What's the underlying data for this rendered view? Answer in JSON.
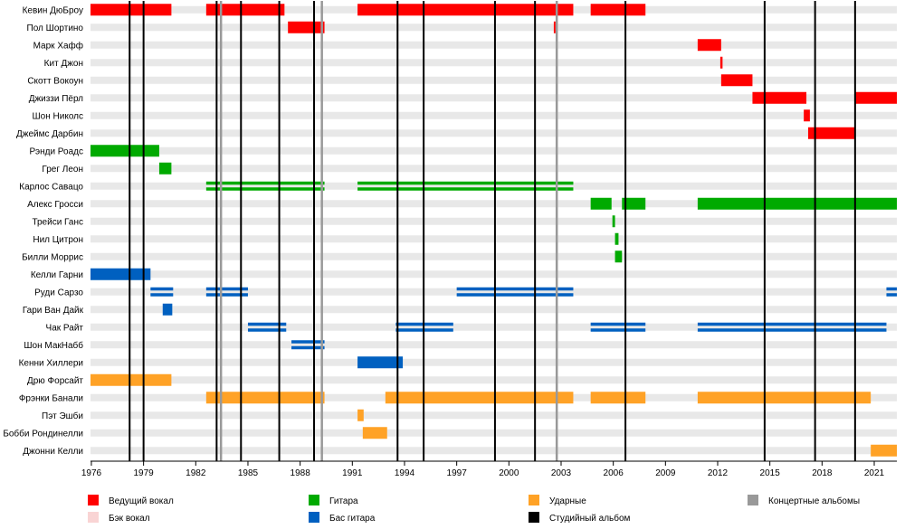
{
  "chart_data": {
    "type": "timeline",
    "x_range": [
      1975.95,
      2022.3
    ],
    "ticks": [
      {
        "year": 1976,
        "label": "1976"
      },
      {
        "year": 1979,
        "label": "1979"
      },
      {
        "year": 1982,
        "label": "1982"
      },
      {
        "year": 1985,
        "label": "1985"
      },
      {
        "year": 1988,
        "label": "1988"
      },
      {
        "year": 1991,
        "label": "1991"
      },
      {
        "year": 1994,
        "label": "1994"
      },
      {
        "year": 1997,
        "label": "1997"
      },
      {
        "year": 2000,
        "label": "2000"
      },
      {
        "year": 2003,
        "label": "2003"
      },
      {
        "year": 2006,
        "label": "2006"
      },
      {
        "year": 2009,
        "label": "2009"
      },
      {
        "year": 2012,
        "label": "2012"
      },
      {
        "year": 2015,
        "label": "2015"
      },
      {
        "year": 2018,
        "label": "2018"
      },
      {
        "year": 2021,
        "label": "2021"
      }
    ],
    "roles": {
      "vocals": {
        "label": "Ведущий вокал",
        "color": "#ff0000"
      },
      "backing": {
        "label": "Бэк вокал",
        "color": "#f9d4d4"
      },
      "guitar": {
        "label": "Гитара",
        "color": "#00aa00"
      },
      "bass": {
        "label": "Бас гитара",
        "color": "#0060c0"
      },
      "drums": {
        "label": "Ударные",
        "color": "#ffa226"
      },
      "live": {
        "label": "Концертные альбомы",
        "color": "#999999"
      },
      "studio": {
        "label": "Студийный альбом",
        "color": "#000000"
      }
    },
    "members": [
      {
        "name": "Кевин ДюБроу",
        "bars": [
          {
            "role": "vocals",
            "from": 1975.95,
            "to": 1980.6
          },
          {
            "role": "vocals",
            "from": 1982.6,
            "to": 1987.1
          },
          {
            "role": "vocals",
            "from": 1991.3,
            "to": 2003.7
          },
          {
            "role": "vocals",
            "from": 2004.7,
            "to": 2007.85
          }
        ]
      },
      {
        "name": "Пол Шортино",
        "bars": [
          {
            "role": "vocals",
            "from": 1987.3,
            "to": 1989.4
          },
          {
            "role": "vocals",
            "from": 2002.58,
            "to": 2002.68
          }
        ]
      },
      {
        "name": "Марк Хафф",
        "bars": [
          {
            "role": "vocals",
            "from": 2010.85,
            "to": 2012.2
          }
        ]
      },
      {
        "name": "Кит Джон",
        "bars": [
          {
            "role": "vocals",
            "from": 2012.15,
            "to": 2012.28
          }
        ]
      },
      {
        "name": "Скотт Вокоун",
        "bars": [
          {
            "role": "vocals",
            "from": 2012.2,
            "to": 2014.0
          }
        ]
      },
      {
        "name": "Джиззи Пёрл",
        "bars": [
          {
            "role": "vocals",
            "from": 2014.0,
            "to": 2017.1
          },
          {
            "role": "vocals",
            "from": 2019.9,
            "to": 2022.3
          }
        ]
      },
      {
        "name": "Шон Николс",
        "bars": [
          {
            "role": "vocals",
            "from": 2016.95,
            "to": 2017.3
          }
        ]
      },
      {
        "name": "Джеймс Дарбин",
        "bars": [
          {
            "role": "vocals",
            "from": 2017.2,
            "to": 2019.9
          }
        ]
      },
      {
        "name": "Рэнди Роадс",
        "bars": [
          {
            "role": "guitar",
            "from": 1975.95,
            "to": 1979.9
          }
        ]
      },
      {
        "name": "Грег Леон",
        "bars": [
          {
            "role": "guitar",
            "from": 1979.9,
            "to": 1980.6
          }
        ]
      },
      {
        "name": "Карлос Савацо",
        "bars": [
          {
            "role": "guitar",
            "from": 1982.6,
            "to": 1989.4,
            "double": true
          },
          {
            "role": "guitar",
            "from": 1991.3,
            "to": 2003.7,
            "double": true
          }
        ]
      },
      {
        "name": "Алекс Гросси",
        "bars": [
          {
            "role": "guitar",
            "from": 2004.7,
            "to": 2005.9
          },
          {
            "role": "guitar",
            "from": 2006.5,
            "to": 2007.85
          },
          {
            "role": "guitar",
            "from": 2010.85,
            "to": 2022.3
          }
        ]
      },
      {
        "name": "Трейси Ганс",
        "bars": [
          {
            "role": "guitar",
            "from": 2005.95,
            "to": 2006.1
          }
        ]
      },
      {
        "name": "Нил Цитрон",
        "bars": [
          {
            "role": "guitar",
            "from": 2006.1,
            "to": 2006.3
          }
        ]
      },
      {
        "name": "Билли Моррис",
        "bars": [
          {
            "role": "guitar",
            "from": 2006.1,
            "to": 2006.5
          }
        ]
      },
      {
        "name": "Келли Гарни",
        "bars": [
          {
            "role": "bass",
            "from": 1975.95,
            "to": 1979.4
          }
        ]
      },
      {
        "name": "Руди Сарзо",
        "bars": [
          {
            "role": "bass",
            "from": 1979.4,
            "to": 1980.7,
            "double": true
          },
          {
            "role": "bass",
            "from": 1982.6,
            "to": 1985.0,
            "double": true
          },
          {
            "role": "bass",
            "from": 1997.0,
            "to": 2003.7,
            "double": true
          },
          {
            "role": "bass",
            "from": 2021.7,
            "to": 2022.3,
            "double": true
          }
        ]
      },
      {
        "name": "Гари Ван Дайк",
        "bars": [
          {
            "role": "bass",
            "from": 1980.1,
            "to": 1980.65
          }
        ]
      },
      {
        "name": "Чак Райт",
        "bars": [
          {
            "role": "bass",
            "from": 1985.0,
            "to": 1987.2,
            "double": true
          },
          {
            "role": "bass",
            "from": 1993.5,
            "to": 1996.8,
            "double": true
          },
          {
            "role": "bass",
            "from": 2004.7,
            "to": 2007.85,
            "double": true
          },
          {
            "role": "bass",
            "from": 2010.85,
            "to": 2021.7,
            "double": true
          }
        ]
      },
      {
        "name": "Шон МакНабб",
        "bars": [
          {
            "role": "bass",
            "from": 1987.5,
            "to": 1989.4,
            "double": true
          }
        ]
      },
      {
        "name": "Кенни Хиллери",
        "bars": [
          {
            "role": "bass",
            "from": 1991.3,
            "to": 1993.9
          }
        ]
      },
      {
        "name": "Дрю Форсайт",
        "bars": [
          {
            "role": "drums",
            "from": 1975.95,
            "to": 1980.6
          }
        ]
      },
      {
        "name": "Фрэнки Банали",
        "bars": [
          {
            "role": "drums",
            "from": 1982.6,
            "to": 1989.4
          },
          {
            "role": "drums",
            "from": 1992.9,
            "to": 2003.7
          },
          {
            "role": "drums",
            "from": 2004.7,
            "to": 2007.85
          },
          {
            "role": "drums",
            "from": 2010.85,
            "to": 2020.8
          }
        ]
      },
      {
        "name": "Пэт Эшби",
        "bars": [
          {
            "role": "drums",
            "from": 1991.3,
            "to": 1991.65
          }
        ]
      },
      {
        "name": "Бобби Рондинелли",
        "bars": [
          {
            "role": "drums",
            "from": 1991.6,
            "to": 1993.0
          }
        ]
      },
      {
        "name": "Джонни Келли",
        "bars": [
          {
            "role": "drums",
            "from": 2020.8,
            "to": 2022.3
          }
        ]
      }
    ],
    "studio_albums": [
      1978.2,
      1979.0,
      1983.2,
      1984.6,
      1986.8,
      1988.8,
      1993.6,
      1995.1,
      1999.2,
      2001.5,
      2006.7,
      2014.7,
      2017.6,
      2019.9
    ],
    "live_albums": [
      1983.45,
      1989.25,
      2002.75
    ]
  }
}
